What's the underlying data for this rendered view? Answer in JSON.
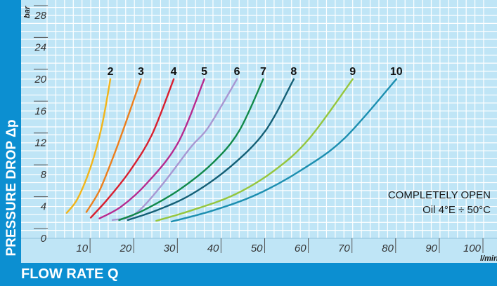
{
  "chart_data": {
    "type": "line",
    "xlabel": "FLOW RATE Q",
    "ylabel": "PRESSURE DROP Δp",
    "x_unit": "l/min",
    "y_unit": "bar",
    "xlim": [
      0,
      100
    ],
    "ylim": [
      0,
      28
    ],
    "x_ticks": [
      0,
      10,
      20,
      30,
      40,
      50,
      60,
      70,
      80,
      90,
      100
    ],
    "y_ticks": [
      4,
      8,
      12,
      16,
      20,
      24,
      28
    ],
    "y_zero_label": "0",
    "grid": true,
    "annotations": [
      "COMPLETELY OPEN",
      "Oil 4°E ÷ 50°C"
    ],
    "series": [
      {
        "name": "2",
        "color": "#f2b51a",
        "points": [
          [
            4.5,
            3.2
          ],
          [
            7,
            5
          ],
          [
            10,
            9
          ],
          [
            12.5,
            14
          ],
          [
            14.5,
            20
          ]
        ]
      },
      {
        "name": "3",
        "color": "#ec7f1d",
        "points": [
          [
            9,
            3.3
          ],
          [
            12,
            6
          ],
          [
            15,
            10
          ],
          [
            18,
            14.5
          ],
          [
            21.5,
            20
          ]
        ]
      },
      {
        "name": "4",
        "color": "#d91f2f",
        "points": [
          [
            10,
            2.6
          ],
          [
            14,
            5
          ],
          [
            19,
            8.5
          ],
          [
            24,
            13
          ],
          [
            29,
            20
          ]
        ]
      },
      {
        "name": "5",
        "color": "#b72a8f",
        "points": [
          [
            12,
            2.5
          ],
          [
            17,
            4
          ],
          [
            23,
            7
          ],
          [
            30,
            12
          ],
          [
            36,
            20
          ]
        ]
      },
      {
        "name": "6",
        "color": "#a897d2",
        "points": [
          [
            15,
            2.3
          ],
          [
            20,
            3
          ],
          [
            26,
            6.5
          ],
          [
            33,
            11.5
          ],
          [
            37,
            14
          ],
          [
            43.5,
            20
          ]
        ]
      },
      {
        "name": "7",
        "color": "#11894a",
        "points": [
          [
            16.5,
            2.3
          ],
          [
            22,
            3.5
          ],
          [
            30,
            6
          ],
          [
            38,
            9.5
          ],
          [
            44,
            13.5
          ],
          [
            49.5,
            20
          ]
        ]
      },
      {
        "name": "8",
        "color": "#145f75",
        "points": [
          [
            18.5,
            2.3
          ],
          [
            25,
            3.5
          ],
          [
            33,
            5.5
          ],
          [
            42,
            9
          ],
          [
            50,
            13.5
          ],
          [
            56.5,
            20
          ]
        ]
      },
      {
        "name": "9",
        "color": "#95c63d",
        "points": [
          [
            25,
            2.2
          ],
          [
            33,
            3.5
          ],
          [
            43,
            5.5
          ],
          [
            52,
            8.5
          ],
          [
            60,
            12.5
          ],
          [
            70,
            20
          ]
        ]
      },
      {
        "name": "10",
        "color": "#1d8fb0",
        "points": [
          [
            28.5,
            2.1
          ],
          [
            38,
            3.5
          ],
          [
            48,
            5.5
          ],
          [
            58,
            8.5
          ],
          [
            68,
            12.5
          ],
          [
            80,
            20
          ]
        ]
      }
    ]
  }
}
